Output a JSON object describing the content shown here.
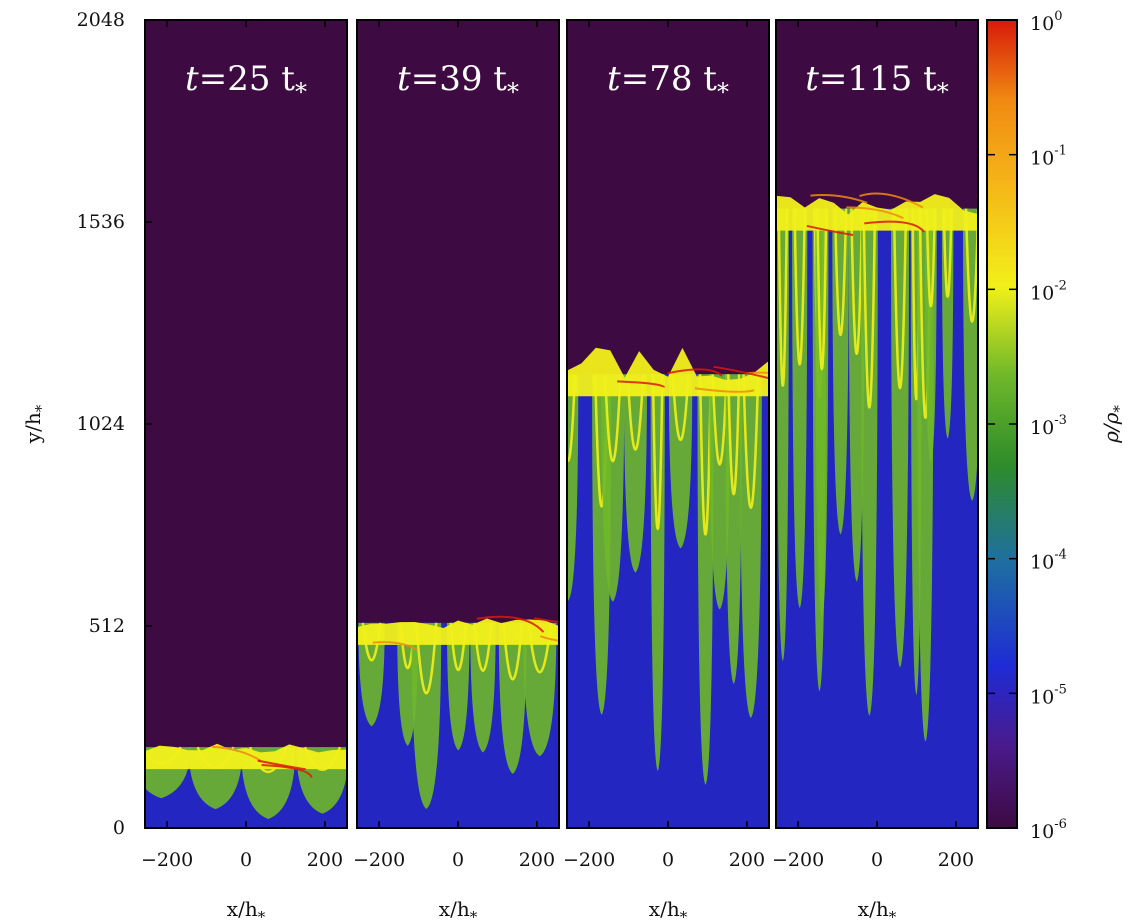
{
  "chart_data": {
    "type": "heatmap",
    "colormap": "density (log scale): purple - blue - green - yellow - orange - red",
    "panels": [
      {
        "time": "25",
        "front_height": 205,
        "max_height": 215
      },
      {
        "time": "39",
        "front_height": 520,
        "max_height": 540
      },
      {
        "time": "78",
        "front_height": 1150,
        "max_height": 1220
      },
      {
        "time": "115",
        "front_height": 1570,
        "max_height": 1610
      }
    ],
    "title_prefix": "t",
    "title_eq": "=",
    "title_unit": "t",
    "unit_subscript": "*",
    "xaxis": {
      "label": "x/h",
      "label_subscript": "*",
      "ticks": [
        -200,
        0,
        200
      ],
      "tick_labels": [
        "−200",
        "0",
        "200"
      ],
      "range": [
        -256,
        256
      ]
    },
    "yaxis": {
      "label": "y/h",
      "label_subscript": "*",
      "ticks": [
        0,
        512,
        1024,
        1536,
        2048
      ],
      "tick_labels": [
        "0",
        "512",
        "1024",
        "1536",
        "2048"
      ],
      "range": [
        0,
        2048
      ]
    },
    "colorbar": {
      "label": "ρ/ρ",
      "label_subscript": "*",
      "scale": "log",
      "ticks": [
        {
          "exp": 0,
          "base": "10",
          "sup": "0"
        },
        {
          "exp": -1,
          "base": "10",
          "sup": "-1"
        },
        {
          "exp": -2,
          "base": "10",
          "sup": "-2"
        },
        {
          "exp": -3,
          "base": "10",
          "sup": "-3"
        },
        {
          "exp": -4,
          "base": "10",
          "sup": "-4"
        },
        {
          "exp": -5,
          "base": "10",
          "sup": "-5"
        },
        {
          "exp": -6,
          "base": "10",
          "sup": "-6"
        }
      ],
      "range": [
        -6,
        0
      ]
    }
  },
  "colors": {
    "background_low": "#3d0a42",
    "blue": "#1f2bd6",
    "green": "#6fb82a",
    "yellow": "#f2f01a",
    "orange": "#f08a12",
    "red": "#d81a0a"
  }
}
